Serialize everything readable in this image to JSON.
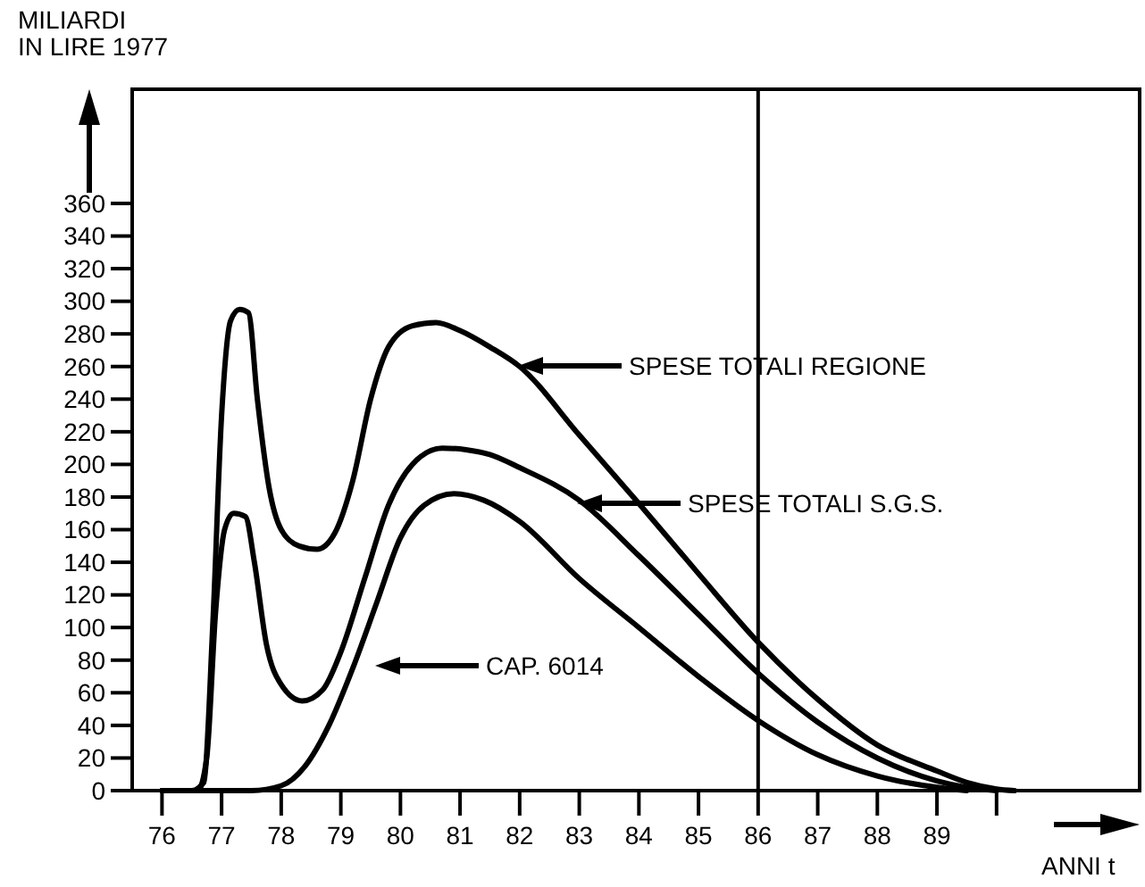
{
  "chart_data": {
    "type": "line",
    "ylabel": "MILIARDI\nIN LIRE 1977",
    "xlabel": "ANNI t",
    "xlim": [
      75.5,
      92.4
    ],
    "ylim": [
      0,
      430
    ],
    "xticks": [
      76,
      77,
      78,
      79,
      80,
      81,
      82,
      83,
      84,
      85,
      86,
      87,
      88,
      89,
      {
        "value": 90,
        "label": null
      }
    ],
    "yticks": [
      0,
      20,
      40,
      60,
      80,
      100,
      120,
      140,
      160,
      180,
      200,
      220,
      240,
      260,
      280,
      300,
      320,
      340,
      360
    ],
    "grid": false,
    "marker": "none",
    "line_style": "solid",
    "ref_lines": [
      {
        "axis": "x",
        "value": 86,
        "label": null,
        "color": "#000000"
      }
    ],
    "annotations": [
      "SPESE TOTALI REGIONE",
      "SPESE TOTALI S.G.S.",
      "CAP. 6014"
    ],
    "series": [
      {
        "color": "#000000",
        "x": [
          76,
          76.5,
          76.7,
          76.85,
          77.0,
          77.15,
          77.3,
          77.45,
          77.6,
          77.8,
          78.0,
          78.3,
          78.6,
          78.9,
          79.2,
          79.5,
          79.8,
          80.2,
          80.6,
          81.0,
          81.5,
          82,
          83,
          84,
          85,
          86,
          87,
          88,
          89,
          89.5,
          90,
          90.3
        ],
        "values": [
          0,
          0,
          5,
          100,
          230,
          288,
          295,
          293,
          240,
          185,
          160,
          150,
          148,
          158,
          190,
          240,
          272,
          285,
          287,
          282,
          272,
          260,
          218,
          176,
          133,
          91,
          56,
          28,
          12,
          5,
          1,
          0
        ]
      },
      {
        "color": "#000000",
        "x": [
          76,
          76.6,
          76.75,
          76.9,
          77.05,
          77.2,
          77.4,
          77.55,
          77.75,
          78.0,
          78.35,
          78.7,
          79.0,
          79.4,
          79.8,
          80.2,
          80.7,
          81.1,
          81.5,
          82,
          83,
          84,
          85,
          86,
          87,
          88,
          89,
          89.5,
          90
        ],
        "values": [
          0,
          0,
          20,
          110,
          160,
          170,
          168,
          140,
          90,
          65,
          55,
          62,
          85,
          130,
          175,
          200,
          210,
          209,
          206,
          198,
          178,
          144,
          108,
          72,
          42,
          20,
          6,
          2,
          0
        ]
      },
      {
        "color": "#000000",
        "x": [
          76,
          77.5,
          78,
          78.4,
          78.8,
          79.2,
          79.6,
          80.0,
          80.4,
          80.9,
          81.4,
          82,
          83,
          84,
          85,
          86,
          87,
          88,
          89,
          89.5
        ],
        "values": [
          0,
          0,
          3,
          15,
          40,
          75,
          115,
          155,
          175,
          182,
          178,
          165,
          130,
          100,
          70,
          43,
          22,
          9,
          2,
          0
        ]
      }
    ]
  }
}
